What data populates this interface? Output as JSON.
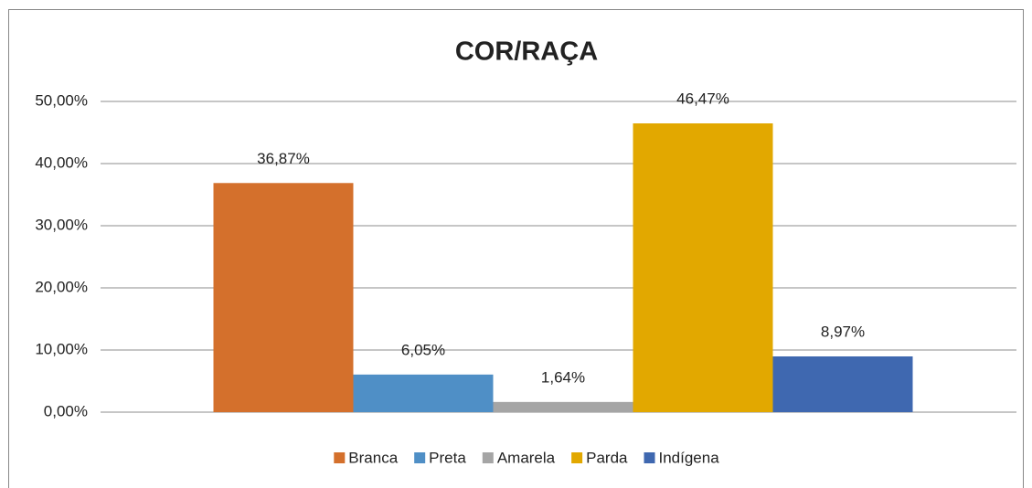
{
  "chart_data": {
    "type": "bar",
    "title": "COR/RAÇA",
    "categories": [
      null
    ],
    "series": [
      {
        "name": "Branca",
        "color": "#d4702c",
        "values": [
          36.87
        ],
        "value_labels": [
          "36,87%"
        ]
      },
      {
        "name": "Preta",
        "color": "#4f8fc6",
        "values": [
          6.05
        ],
        "value_labels": [
          "6,05%"
        ]
      },
      {
        "name": "Amarela",
        "color": "#a5a5a5",
        "values": [
          1.64
        ],
        "value_labels": [
          "1,64%"
        ]
      },
      {
        "name": "Parda",
        "color": "#e2a800",
        "values": [
          46.47
        ],
        "value_labels": [
          "46,47%"
        ]
      },
      {
        "name": "Indígena",
        "color": "#3f68b0",
        "values": [
          8.97
        ],
        "value_labels": [
          "8,97%"
        ]
      }
    ],
    "ylim": [
      0,
      50
    ],
    "yticks": [
      {
        "value": 0,
        "label": "0,00%"
      },
      {
        "value": 10,
        "label": "10,00%"
      },
      {
        "value": 20,
        "label": "20,00%"
      },
      {
        "value": 30,
        "label": "30,00%"
      },
      {
        "value": 40,
        "label": "40,00%"
      },
      {
        "value": 50,
        "label": "50,00%"
      }
    ],
    "grid": true,
    "legend": "bottom"
  }
}
